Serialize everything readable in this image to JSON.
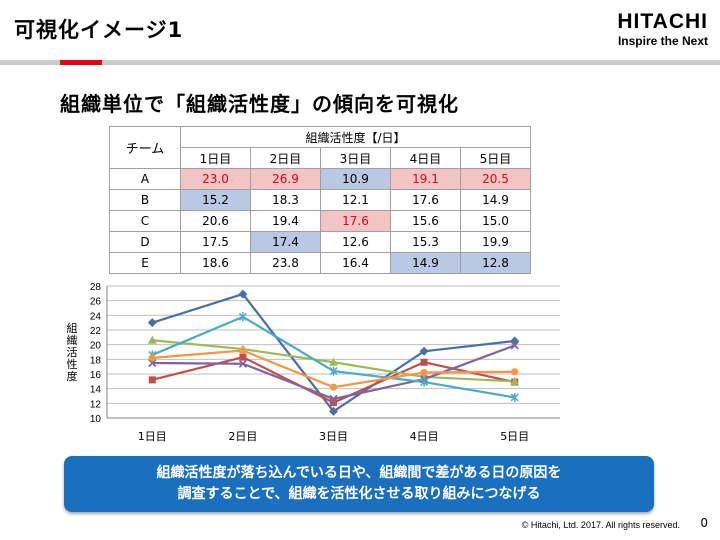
{
  "header": {
    "title": "可視化イメージ1",
    "brand": "HITACHI",
    "tagline": "Inspire the Next"
  },
  "subheading": "組織単位で「組織活性度」の傾向を可視化",
  "table": {
    "team_header": "チーム",
    "group_header": "組織活性度【/日】",
    "day_headers": [
      "1日目",
      "2日目",
      "3日目",
      "4日目",
      "5日目"
    ],
    "rows": [
      {
        "team": "A",
        "cells": [
          {
            "v": "23.0",
            "hl": "hi"
          },
          {
            "v": "26.9",
            "hl": "hi"
          },
          {
            "v": "10.9",
            "hl": "lo"
          },
          {
            "v": "19.1",
            "hl": "hi"
          },
          {
            "v": "20.5",
            "hl": "hi"
          }
        ]
      },
      {
        "team": "B",
        "cells": [
          {
            "v": "15.2",
            "hl": "lo"
          },
          {
            "v": "18.3",
            "hl": ""
          },
          {
            "v": "12.1",
            "hl": ""
          },
          {
            "v": "17.6",
            "hl": ""
          },
          {
            "v": "14.9",
            "hl": ""
          }
        ]
      },
      {
        "team": "C",
        "cells": [
          {
            "v": "20.6",
            "hl": ""
          },
          {
            "v": "19.4",
            "hl": ""
          },
          {
            "v": "17.6",
            "hl": "hi"
          },
          {
            "v": "15.6",
            "hl": ""
          },
          {
            "v": "15.0",
            "hl": ""
          }
        ]
      },
      {
        "team": "D",
        "cells": [
          {
            "v": "17.5",
            "hl": ""
          },
          {
            "v": "17.4",
            "hl": "lo"
          },
          {
            "v": "12.6",
            "hl": ""
          },
          {
            "v": "15.3",
            "hl": ""
          },
          {
            "v": "19.9",
            "hl": ""
          }
        ]
      },
      {
        "team": "E",
        "cells": [
          {
            "v": "18.6",
            "hl": ""
          },
          {
            "v": "23.8",
            "hl": ""
          },
          {
            "v": "16.4",
            "hl": ""
          },
          {
            "v": "14.9",
            "hl": "lo"
          },
          {
            "v": "12.8",
            "hl": "lo"
          }
        ]
      }
    ]
  },
  "chart_data": {
    "type": "line",
    "categories": [
      "1日目",
      "2日目",
      "3日目",
      "4日目",
      "5日目"
    ],
    "ylabel": "組織活性度",
    "ylim": [
      10,
      28
    ],
    "yticks": [
      10,
      12,
      14,
      16,
      18,
      20,
      22,
      24,
      26,
      28
    ],
    "grid": true,
    "series": [
      {
        "values": [
          23.0,
          26.9,
          10.9,
          19.1,
          20.5
        ],
        "color": "#4a6fa5",
        "marker": "diamond"
      },
      {
        "values": [
          15.2,
          18.3,
          12.1,
          17.6,
          14.9
        ],
        "color": "#c0504d",
        "marker": "square"
      },
      {
        "values": [
          20.6,
          19.4,
          17.6,
          15.6,
          15.0
        ],
        "color": "#9bbb59",
        "marker": "triangle"
      },
      {
        "values": [
          17.5,
          17.4,
          12.6,
          15.3,
          19.9
        ],
        "color": "#8064a2",
        "marker": "x"
      },
      {
        "values": [
          18.6,
          23.8,
          16.4,
          14.9,
          12.8
        ],
        "color": "#4bacc6",
        "marker": "star"
      },
      {
        "values": [
          18.2,
          19.2,
          14.2,
          16.2,
          16.3
        ],
        "color": "#f79646",
        "marker": "circle"
      }
    ]
  },
  "callout": {
    "line1": "組織活性度が落ち込んでいる日や、組織間で差がある日の原因を",
    "line2": "調査することで、組織を活性化させる取り組みにつなげる"
  },
  "footer": {
    "copyright": "© Hitachi, Ltd. 2017. All rights reserved.",
    "page": "0"
  }
}
